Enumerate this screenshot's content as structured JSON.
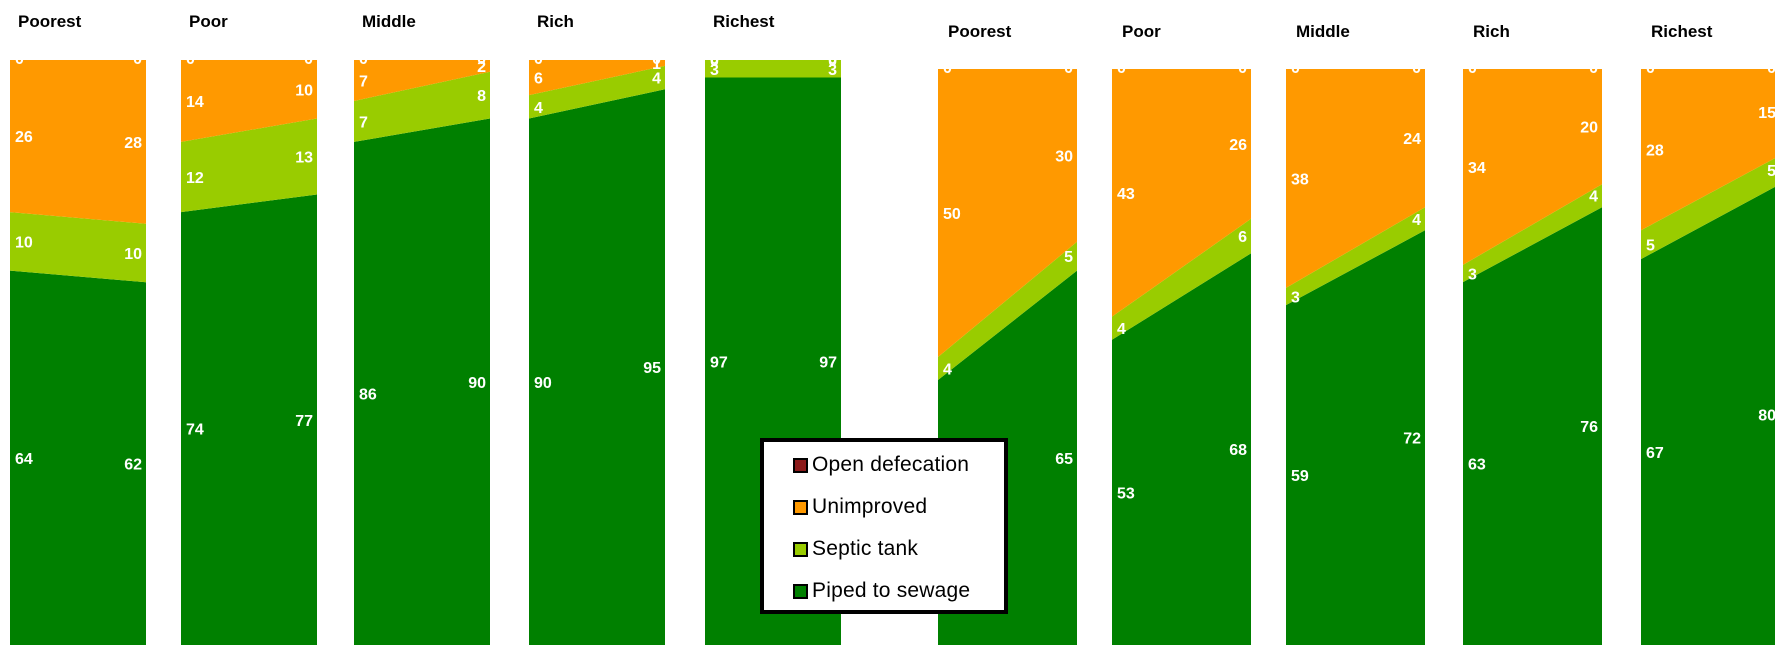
{
  "colors": {
    "Open defecation": "#8b1a1a",
    "Unimproved": "#ff9900",
    "Septic tank": "#99cc00",
    "Piped to sewage": "#008000"
  },
  "legend": {
    "items": [
      "Open defecation",
      "Unimproved",
      "Septic tank",
      "Piped to sewage"
    ]
  },
  "chart_data": [
    {
      "type": "area",
      "stacked": true,
      "stack_order_bottom_to_top": [
        "Piped to sewage",
        "Septic tank",
        "Unimproved",
        "Open defecation"
      ],
      "panels": [
        {
          "label": "Poorest",
          "start": {
            "Open defecation": 0,
            "Unimproved": 26,
            "Septic tank": 10,
            "Piped to sewage": 64
          },
          "end": {
            "Open defecation": 0,
            "Unimproved": 28,
            "Septic tank": 10,
            "Piped to sewage": 62
          }
        },
        {
          "label": "Poor",
          "start": {
            "Open defecation": 0,
            "Unimproved": 14,
            "Septic tank": 12,
            "Piped to sewage": 74
          },
          "end": {
            "Open defecation": 0,
            "Unimproved": 10,
            "Septic tank": 13,
            "Piped to sewage": 77
          }
        },
        {
          "label": "Middle",
          "start": {
            "Open defecation": 0,
            "Unimproved": 7,
            "Septic tank": 7,
            "Piped to sewage": 86
          },
          "end": {
            "Open defecation": 0,
            "Unimproved": 2,
            "Septic tank": 8,
            "Piped to sewage": 90
          }
        },
        {
          "label": "Rich",
          "start": {
            "Open defecation": 0,
            "Unimproved": 6,
            "Septic tank": 4,
            "Piped to sewage": 90
          },
          "end": {
            "Open defecation": 0,
            "Unimproved": 1,
            "Septic tank": 4,
            "Piped to sewage": 95
          }
        },
        {
          "label": "Richest",
          "start": {
            "Open defecation": 0,
            "Unimproved": 0,
            "Septic tank": 3,
            "Piped to sewage": 97
          },
          "end": {
            "Open defecation": 0,
            "Unimproved": 0,
            "Septic tank": 3,
            "Piped to sewage": 97
          }
        }
      ]
    },
    {
      "type": "area",
      "stacked": true,
      "stack_order_bottom_to_top": [
        "Piped to sewage",
        "Septic tank",
        "Unimproved",
        "Open defecation"
      ],
      "panels": [
        {
          "label": "Poorest",
          "start": {
            "Open defecation": 0,
            "Unimproved": 50,
            "Septic tank": 4,
            "Piped to sewage": 46
          },
          "end": {
            "Open defecation": 0,
            "Unimproved": 30,
            "Septic tank": 5,
            "Piped to sewage": 65
          }
        },
        {
          "label": "Poor",
          "start": {
            "Open defecation": 0,
            "Unimproved": 43,
            "Septic tank": 4,
            "Piped to sewage": 53
          },
          "end": {
            "Open defecation": 0,
            "Unimproved": 26,
            "Septic tank": 6,
            "Piped to sewage": 68
          }
        },
        {
          "label": "Middle",
          "start": {
            "Open defecation": 0,
            "Unimproved": 38,
            "Septic tank": 3,
            "Piped to sewage": 59
          },
          "end": {
            "Open defecation": 0,
            "Unimproved": 24,
            "Septic tank": 4,
            "Piped to sewage": 72
          }
        },
        {
          "label": "Rich",
          "start": {
            "Open defecation": 0,
            "Unimproved": 34,
            "Septic tank": 3,
            "Piped to sewage": 63
          },
          "end": {
            "Open defecation": 0,
            "Unimproved": 20,
            "Septic tank": 4,
            "Piped to sewage": 76
          }
        },
        {
          "label": "Richest",
          "start": {
            "Open defecation": 0,
            "Unimproved": 28,
            "Septic tank": 5,
            "Piped to sewage": 67
          },
          "end": {
            "Open defecation": 0,
            "Unimproved": 15,
            "Septic tank": 5,
            "Piped to sewage": 80
          }
        }
      ],
      "hidden_labels": {
        "Poorest": {
          "start": [
            "Piped to sewage"
          ]
        }
      }
    }
  ]
}
